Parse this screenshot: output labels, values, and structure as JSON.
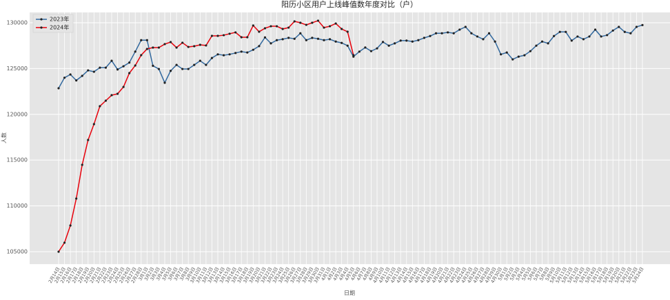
{
  "chart_data": {
    "type": "line",
    "title": "阳历小区用户上线峰值数年度对比（户）",
    "xlabel": "日期",
    "ylabel": "人数",
    "categories": [
      "2月14日",
      "2月15日",
      "2月16日",
      "2月17日",
      "2月18日",
      "2月19日",
      "2月20日",
      "2月21日",
      "2月22日",
      "2月23日",
      "2月24日",
      "2月25日",
      "2月26日",
      "2月27日",
      "2月28日",
      "3月1日",
      "3月2日",
      "3月3日",
      "3月4日",
      "3月5日",
      "3月6日",
      "3月7日",
      "3月8日",
      "3月9日",
      "3月10日",
      "3月11日",
      "3月12日",
      "3月13日",
      "3月14日",
      "3月15日",
      "3月16日",
      "3月17日",
      "3月18日",
      "3月19日",
      "3月20日",
      "3月21日",
      "3月22日",
      "3月23日",
      "3月24日",
      "3月25日",
      "3月26日",
      "3月27日",
      "3月28日",
      "3月29日",
      "3月30日",
      "3月31日",
      "4月1日",
      "4月2日",
      "4月3日",
      "4月4日",
      "4月5日",
      "4月6日",
      "4月7日",
      "4月8日",
      "4月9日",
      "4月10日",
      "4月11日",
      "4月12日",
      "4月13日",
      "4月14日",
      "4月15日",
      "4月16日",
      "4月17日",
      "4月18日",
      "4月19日",
      "4月20日",
      "4月21日",
      "4月22日",
      "4月23日",
      "4月24日",
      "4月25日",
      "4月26日",
      "4月27日",
      "4月28日",
      "4月29日",
      "4月30日",
      "5月1日",
      "5月2日",
      "5月3日",
      "5月4日",
      "5月5日",
      "5月6日",
      "5月7日",
      "5月8日",
      "5月9日",
      "5月10日",
      "5月11日",
      "5月12日",
      "5月13日",
      "5月14日",
      "5月15日",
      "5月16日",
      "5月17日",
      "5月18日",
      "5月19日",
      "5月20日",
      "5月21日",
      "5月22日",
      "5月23日",
      "5月24日"
    ],
    "series": [
      {
        "name": "2023年",
        "color": "#31689e",
        "values": [
          122850,
          124000,
          124350,
          123700,
          124200,
          124800,
          124650,
          125100,
          125100,
          125850,
          124900,
          125250,
          125650,
          126850,
          128100,
          128100,
          125300,
          124950,
          123450,
          124750,
          125400,
          124950,
          124950,
          125400,
          125850,
          125400,
          126150,
          126550,
          126450,
          126550,
          126700,
          126850,
          126750,
          127050,
          127450,
          128400,
          127750,
          128100,
          128200,
          128350,
          128250,
          128850,
          128100,
          128350,
          128250,
          128100,
          128200,
          127950,
          127800,
          127500,
          126300,
          126850,
          127300,
          126900,
          127200,
          127900,
          127500,
          127750,
          128050,
          128050,
          127950,
          128100,
          128350,
          128550,
          128850,
          128850,
          128950,
          128850,
          129250,
          129550,
          128850,
          128500,
          128200,
          128850,
          127950,
          126550,
          126750,
          126000,
          126300,
          126450,
          126900,
          127500,
          127950,
          127750,
          128550,
          129000,
          129000,
          128050,
          128500,
          128200,
          128500,
          129250,
          128500,
          128650,
          129150,
          129550,
          129000,
          128850,
          129550,
          129750
        ]
      },
      {
        "name": "2024年",
        "color": "#e8000b",
        "values": [
          105000,
          105980,
          107860,
          110800,
          114490,
          117200,
          118930,
          120890,
          121490,
          122090,
          122240,
          122990,
          124500,
          125330,
          126460,
          127140,
          127290,
          127290,
          127670,
          127890,
          127290,
          127820,
          127360,
          127440,
          127590,
          127520,
          128570,
          128570,
          128640,
          128800,
          128950,
          128420,
          128420,
          129700,
          129020,
          129400,
          129620,
          129620,
          129320,
          129470,
          130150,
          130000,
          129770,
          130000,
          130230,
          129470,
          129620,
          129920,
          129320,
          129020,
          126460,
          null,
          null,
          null,
          null,
          null,
          null,
          null,
          null,
          null,
          null,
          null,
          null,
          null,
          null,
          null,
          null,
          null,
          null,
          null,
          null,
          null,
          null,
          null,
          null,
          null,
          null,
          null,
          null,
          null,
          null,
          null,
          null,
          null,
          null,
          null,
          null,
          null,
          null,
          null,
          null,
          null,
          null,
          null,
          null,
          null,
          null,
          null,
          null,
          null
        ]
      }
    ],
    "ylim": [
      103640,
      131130
    ],
    "yticks": [
      105000,
      110000,
      115000,
      120000,
      125000,
      130000
    ],
    "grid": true,
    "legend": "upper left"
  }
}
